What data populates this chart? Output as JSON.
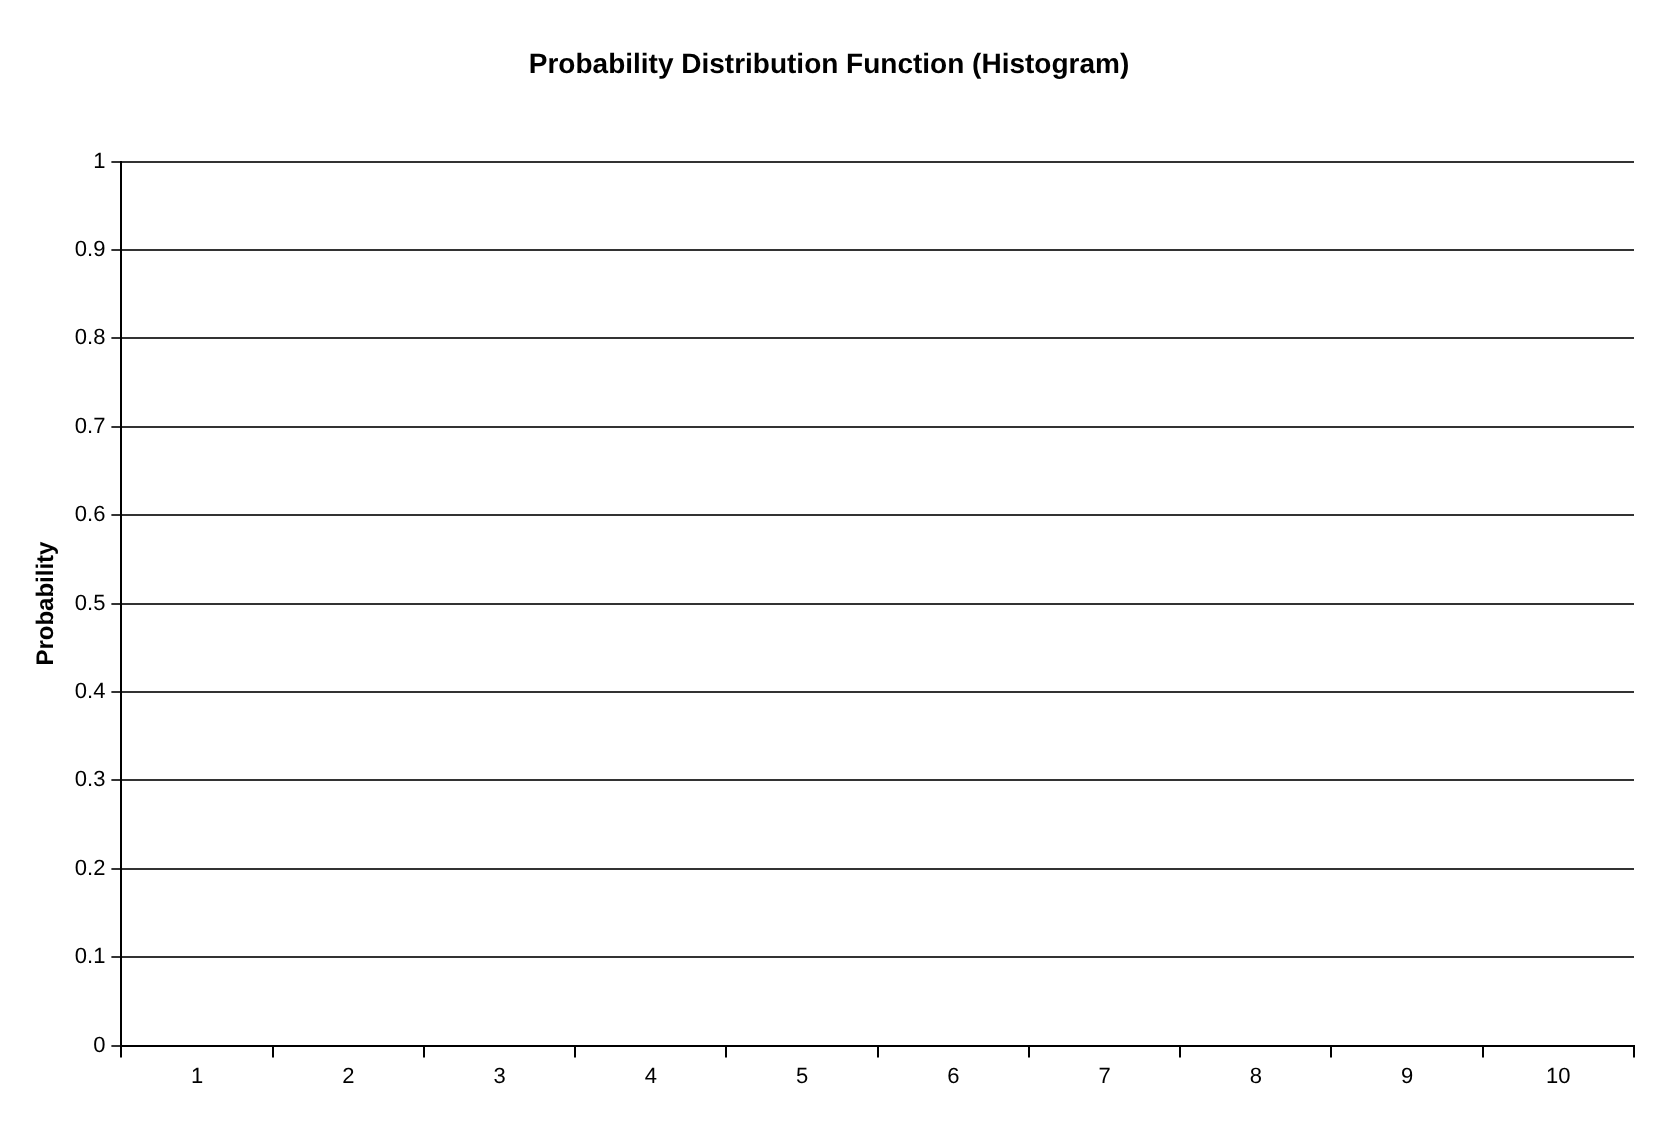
{
  "chart_data": {
    "type": "bar",
    "title": "Probability Distribution Function (Histogram)",
    "ylabel": "Probability",
    "categories": [
      "1",
      "2",
      "3",
      "4",
      "5",
      "6",
      "7",
      "8",
      "9",
      "10"
    ],
    "values": [
      null,
      null,
      null,
      null,
      null,
      null,
      null,
      null,
      null,
      null
    ],
    "ylim": [
      0,
      1
    ],
    "yticks": [
      0,
      0.1,
      0.2,
      0.3,
      0.4,
      0.5,
      0.6,
      0.7,
      0.8,
      0.9,
      1
    ],
    "grid": "y",
    "legend": false
  }
}
